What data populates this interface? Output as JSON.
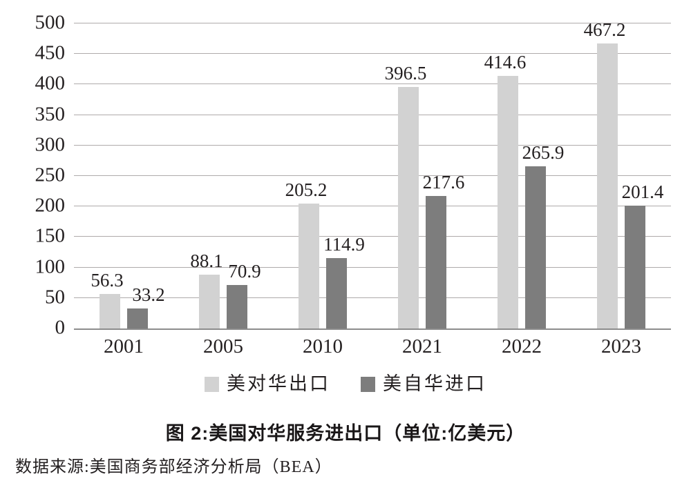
{
  "chart_data": {
    "type": "bar",
    "title": "图 2:美国对华服务进出口（单位:亿美元）",
    "source": "数据来源:美国商务部经济分析局（BEA）",
    "categories": [
      "2001",
      "2005",
      "2010",
      "2021",
      "2022",
      "2023"
    ],
    "series": [
      {
        "name": "美对华出口",
        "color": "#d2d2d2",
        "values": [
          56.3,
          88.1,
          205.2,
          396.5,
          414.6,
          467.2
        ]
      },
      {
        "name": "美自华进口",
        "color": "#7d7d7d",
        "values": [
          33.2,
          70.9,
          114.9,
          217.6,
          265.9,
          201.4
        ]
      }
    ],
    "ylim": [
      0,
      500
    ],
    "ytick_step": 50,
    "yticks": [
      0,
      50,
      100,
      150,
      200,
      250,
      300,
      350,
      400,
      450,
      500
    ],
    "grid": true,
    "value_labels": true,
    "legend_position": "bottom",
    "xlabel": "",
    "ylabel": "",
    "colors": {
      "export_bar": "#d2d2d2",
      "import_bar": "#7d7d7d",
      "gridline": "#aeaaaa",
      "axis_line": "#8c8c8c",
      "text": "#231f20",
      "background": "#ffffff"
    }
  }
}
